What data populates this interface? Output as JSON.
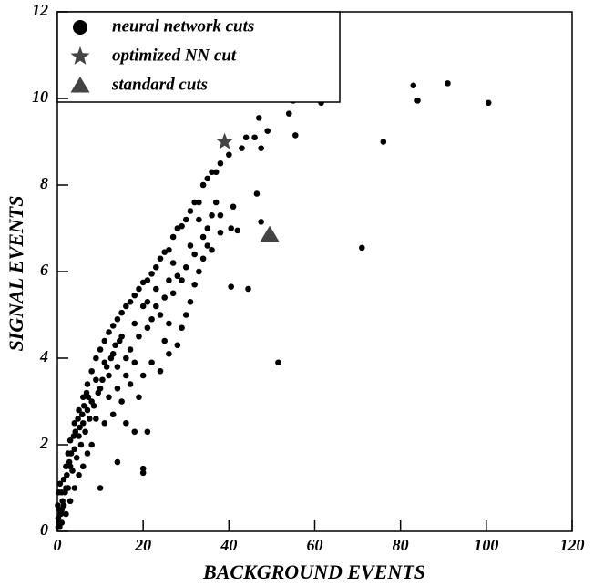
{
  "chart_data": {
    "type": "scatter",
    "x_label": "BACKGROUND EVENTS",
    "y_label": "SIGNAL EVENTS",
    "xlim": [
      0,
      120
    ],
    "ylim": [
      0,
      12
    ],
    "xticks": [
      0,
      20,
      40,
      60,
      80,
      100,
      120
    ],
    "yticks": [
      0,
      2,
      4,
      6,
      8,
      10,
      12
    ],
    "legend": "upper left",
    "series": [
      {
        "name": "neural network cuts",
        "color": "#000000",
        "marker": "circle",
        "x": [
          61.5,
          55,
          54,
          46,
          47,
          49,
          47.5,
          55.5,
          83,
          91,
          84,
          100.5,
          76,
          71,
          51.5,
          44.5,
          40.5,
          47.5,
          46.5,
          41,
          40.5,
          42,
          38,
          37,
          36,
          35,
          34,
          33,
          32,
          31,
          30,
          29,
          26,
          24,
          20,
          20,
          21,
          16,
          14,
          10,
          18,
          44,
          43,
          40,
          38,
          37,
          36,
          35,
          34,
          33,
          32,
          31,
          30,
          29,
          28,
          27,
          26,
          25,
          24,
          23,
          22,
          21,
          20,
          19,
          18,
          17,
          16,
          15,
          14,
          13,
          12,
          11,
          10,
          9,
          8,
          7,
          6,
          5,
          4,
          3,
          2.5,
          2,
          1.5,
          1,
          0.5,
          0.3,
          38,
          36,
          34,
          32,
          30,
          28,
          27,
          26,
          25,
          24,
          23,
          22,
          21,
          20,
          19,
          18,
          17,
          16,
          15,
          14,
          13,
          12,
          11,
          10,
          9,
          8,
          7,
          6,
          5,
          4,
          3,
          2,
          1,
          25,
          22,
          19,
          17,
          15,
          13,
          12,
          11,
          9,
          8,
          7,
          6,
          5,
          4,
          3,
          2,
          1,
          0.5,
          1.5,
          2.5,
          3.5,
          4.5,
          5.5,
          6.5,
          7.5,
          8.5,
          9.5,
          10.5,
          11.5,
          12.5,
          13.5,
          14.5,
          29,
          31,
          33,
          35,
          27,
          23,
          21,
          20,
          18,
          16,
          14,
          28,
          26,
          0.2,
          0.8,
          1.2,
          1.8,
          2.2,
          2.8,
          3.2,
          3.8,
          4.2,
          4.8,
          5.2,
          5.8,
          6.2,
          6.8,
          7.2,
          0.1,
          0.3,
          0.6,
          0.2
        ],
        "y": [
          9.9,
          9.95,
          9.65,
          9.1,
          9.55,
          9.25,
          8.85,
          9.15,
          10.3,
          10.35,
          9.95,
          9.9,
          9.0,
          6.55,
          3.9,
          5.6,
          5.65,
          7.15,
          7.8,
          7.5,
          7.0,
          6.95,
          7.3,
          7.6,
          7.3,
          6.6,
          6.3,
          6.0,
          5.7,
          5.3,
          5.0,
          4.7,
          4.1,
          3.7,
          1.45,
          1.35,
          2.3,
          2.5,
          1.6,
          1.0,
          2.3,
          9.1,
          8.85,
          8.7,
          8.5,
          8.3,
          8.3,
          8.15,
          8.0,
          7.6,
          7.6,
          7.4,
          7.2,
          7.05,
          7.0,
          6.8,
          6.5,
          6.45,
          6.3,
          6.1,
          5.95,
          5.8,
          5.75,
          5.6,
          5.45,
          5.3,
          5.2,
          5.05,
          4.9,
          4.75,
          4.6,
          4.4,
          4.2,
          4.0,
          3.7,
          3.4,
          3.1,
          2.8,
          2.5,
          2.1,
          1.8,
          1.5,
          1.2,
          0.9,
          0.5,
          0.2,
          6.9,
          6.5,
          6.8,
          6.4,
          6.1,
          5.9,
          5.5,
          5.8,
          5.4,
          5.0,
          5.6,
          4.9,
          4.7,
          5.2,
          4.5,
          4.8,
          4.2,
          4.0,
          4.5,
          3.8,
          4.1,
          3.6,
          3.9,
          3.3,
          3.5,
          3.0,
          2.8,
          2.5,
          2.2,
          1.9,
          1.5,
          1.0,
          0.5,
          4.4,
          3.9,
          3.1,
          3.4,
          3.0,
          2.7,
          3.1,
          2.5,
          2.6,
          2.0,
          1.8,
          1.5,
          1.3,
          1.0,
          0.7,
          0.4,
          0.2,
          0.1,
          0.6,
          1.0,
          1.4,
          1.7,
          2.0,
          2.3,
          2.6,
          2.9,
          3.2,
          3.5,
          3.8,
          4.0,
          4.3,
          4.4,
          5.8,
          6.6,
          7.2,
          7.0,
          6.2,
          5.2,
          5.3,
          3.6,
          3.9,
          3.6,
          3.3,
          4.3,
          4.8,
          0.1,
          0.4,
          0.7,
          0.9,
          1.3,
          1.6,
          1.8,
          2.2,
          2.3,
          2.6,
          2.4,
          2.7,
          2.9,
          3.2,
          3.1,
          0.6,
          0.9,
          1.1,
          0.3
        ]
      },
      {
        "name": "optimized NN cut",
        "color": "#444444",
        "marker": "star",
        "x": [
          39
        ],
        "y": [
          9.0
        ]
      },
      {
        "name": "standard cuts",
        "color": "#444444",
        "marker": "triangle",
        "x": [
          49.5
        ],
        "y": [
          6.85
        ]
      }
    ]
  }
}
